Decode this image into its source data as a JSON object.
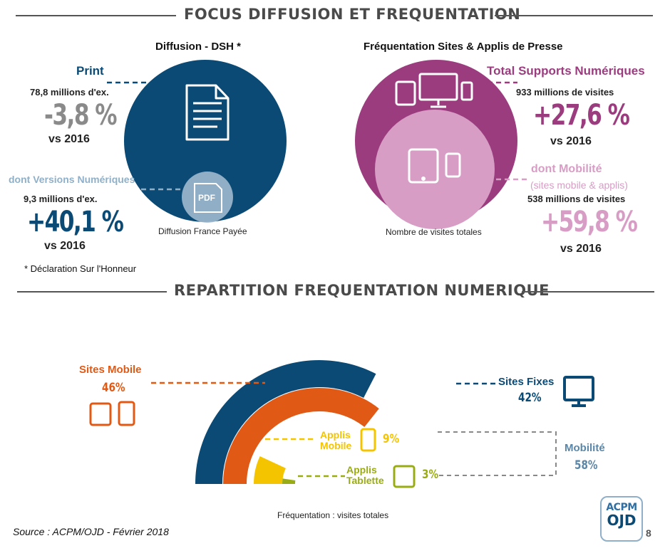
{
  "section1": {
    "title": "FOCUS DIFFUSION ET FREQUENTATION"
  },
  "diffusion": {
    "title": "Diffusion - DSH *",
    "circle_caption": "Diffusion France Payée",
    "print": {
      "label": "Print",
      "volume": "78,8 millions d'ex.",
      "change": "-3,8 %",
      "vs": "vs 2016"
    },
    "numerique": {
      "label": "dont Versions Numériques",
      "volume": "9,3 millions d'ex.",
      "change": "+40,1 %",
      "vs": "vs 2016"
    },
    "pdf_label": "PDF",
    "footnote": "* Déclaration Sur l'Honneur"
  },
  "frequentation": {
    "title": "Fréquentation Sites & Applis de Presse",
    "circle_caption": "Nombre de visites totales",
    "total": {
      "label": "Total Supports Numériques",
      "volume": "933 millions de visites",
      "change": "+27,6 %",
      "vs": "vs 2016"
    },
    "mobilite": {
      "label": "dont Mobilité",
      "sublabel": "(sites mobile & applis)",
      "volume": "538 millions de visites",
      "change": "+59,8 %",
      "vs": "vs 2016"
    }
  },
  "section2": {
    "title": "REPARTITION FREQUENTATION NUMERIQUE"
  },
  "chart_data": {
    "type": "pie",
    "subtype": "concentric-half-arcs",
    "categories": [
      "Sites Fixes",
      "Sites Mobile",
      "Applis Mobile",
      "Applis Tablette"
    ],
    "values": [
      42,
      46,
      9,
      3
    ],
    "value_labels": [
      "42%",
      "46%",
      "9%",
      "3%"
    ],
    "group": {
      "label": "Mobilité",
      "value_label": "58%",
      "members": [
        "Sites Mobile",
        "Applis Mobile",
        "Applis Tablette"
      ]
    },
    "colors": [
      "#0b4a75",
      "#e05a16",
      "#f5c400",
      "#9aac15"
    ],
    "caption": "Fréquentation : visites totales"
  },
  "footer": {
    "source": "Source : ACPM/OJD - Février 2018",
    "page": "8",
    "logo_line1": "ACPM",
    "logo_line2": "OJD"
  },
  "colors": {
    "navy": "#0b4a75",
    "purple": "#9b3c7f",
    "pink": "#d79dc5",
    "light_blue": "#8fb0c8",
    "grey_slate": "#5a86a8",
    "orange": "#e05a16",
    "yellow": "#f5c400",
    "olive": "#9aac15"
  },
  "icons": [
    "document-icon",
    "pdf-icon",
    "desktop-monitor-icon",
    "tablet-icon",
    "smartphone-icon"
  ]
}
